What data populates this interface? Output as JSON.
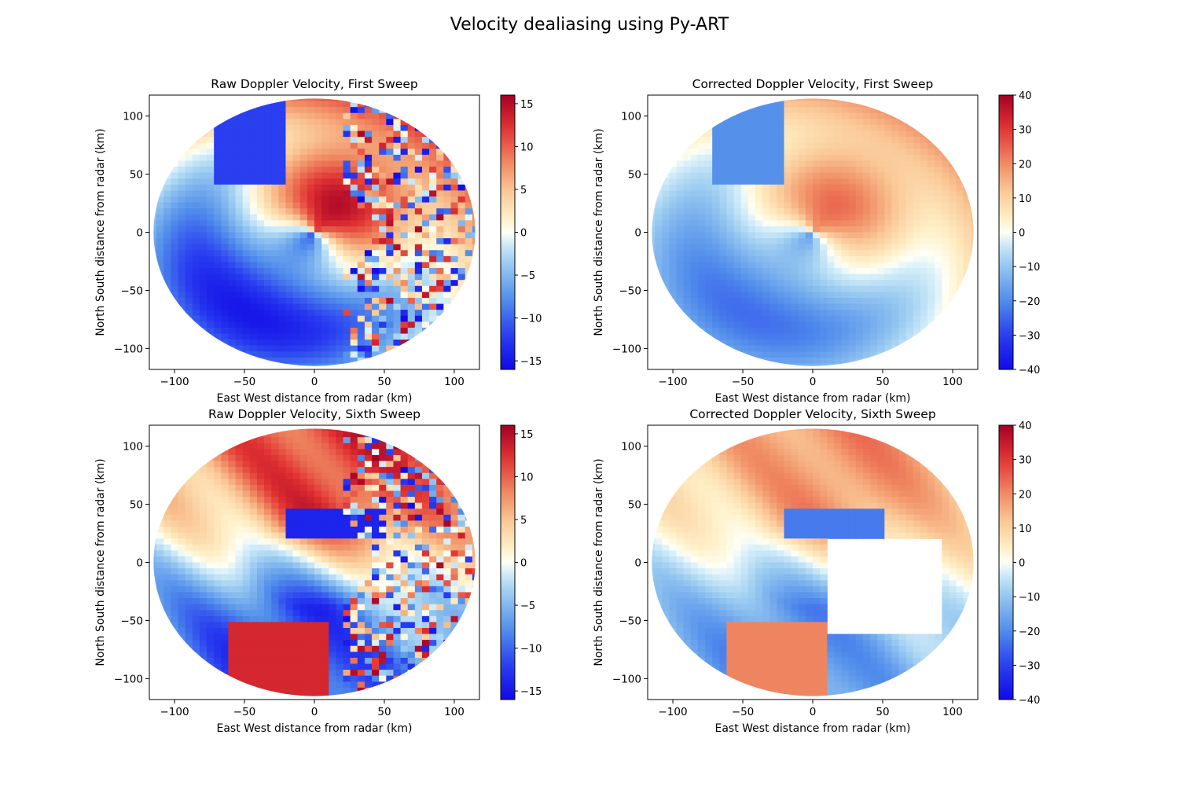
{
  "figure": {
    "title": "Velocity dealiasing using Py-ART"
  },
  "chart_data": [
    {
      "type": "heatmap",
      "title": "Raw Doppler Velocity, First Sweep",
      "xlabel": "East West distance from radar (km)",
      "ylabel": "North South distance from radar (km)",
      "xlim": [
        -118,
        118
      ],
      "ylim": [
        -118,
        118
      ],
      "xticks": [
        -100,
        -50,
        0,
        50,
        100
      ],
      "yticks": [
        -100,
        -50,
        0,
        50,
        100
      ],
      "colorbar": {
        "vmin": -16,
        "vmax": 16,
        "ticks": [
          -15,
          -10,
          -5,
          0,
          5,
          10,
          15
        ],
        "cmap": "RdYlBu_r"
      },
      "field": "raw",
      "sweep": 1
    },
    {
      "type": "heatmap",
      "title": "Corrected Doppler Velocity, First Sweep",
      "xlabel": "East West distance from radar (km)",
      "ylabel": "North South distance from radar (km)",
      "xlim": [
        -118,
        118
      ],
      "ylim": [
        -118,
        118
      ],
      "xticks": [
        -100,
        -50,
        0,
        50,
        100
      ],
      "yticks": [
        -100,
        -50,
        0,
        50,
        100
      ],
      "colorbar": {
        "vmin": -40,
        "vmax": 40,
        "ticks": [
          -40,
          -30,
          -20,
          -10,
          0,
          10,
          20,
          30,
          40
        ],
        "cmap": "RdYlBu_r"
      },
      "field": "corrected",
      "sweep": 1
    },
    {
      "type": "heatmap",
      "title": "Raw Doppler Velocity, Sixth Sweep",
      "xlabel": "East West distance from radar (km)",
      "ylabel": "North South distance from radar (km)",
      "xlim": [
        -118,
        118
      ],
      "ylim": [
        -118,
        118
      ],
      "xticks": [
        -100,
        -50,
        0,
        50,
        100
      ],
      "yticks": [
        -100,
        -50,
        0,
        50,
        100
      ],
      "colorbar": {
        "vmin": -16,
        "vmax": 16,
        "ticks": [
          -15,
          -10,
          -5,
          0,
          5,
          10,
          15
        ],
        "cmap": "RdYlBu_r"
      },
      "field": "raw",
      "sweep": 6
    },
    {
      "type": "heatmap",
      "title": "Corrected Doppler Velocity, Sixth Sweep",
      "xlabel": "East West distance from radar (km)",
      "ylabel": "North South distance from radar (km)",
      "xlim": [
        -118,
        118
      ],
      "ylim": [
        -118,
        118
      ],
      "xticks": [
        -100,
        -50,
        0,
        50,
        100
      ],
      "yticks": [
        -100,
        -50,
        0,
        50,
        100
      ],
      "colorbar": {
        "vmin": -40,
        "vmax": 40,
        "ticks": [
          -40,
          -30,
          -20,
          -10,
          0,
          10,
          20,
          30,
          40
        ],
        "cmap": "RdYlBu_r"
      },
      "field": "corrected",
      "sweep": 6
    }
  ]
}
